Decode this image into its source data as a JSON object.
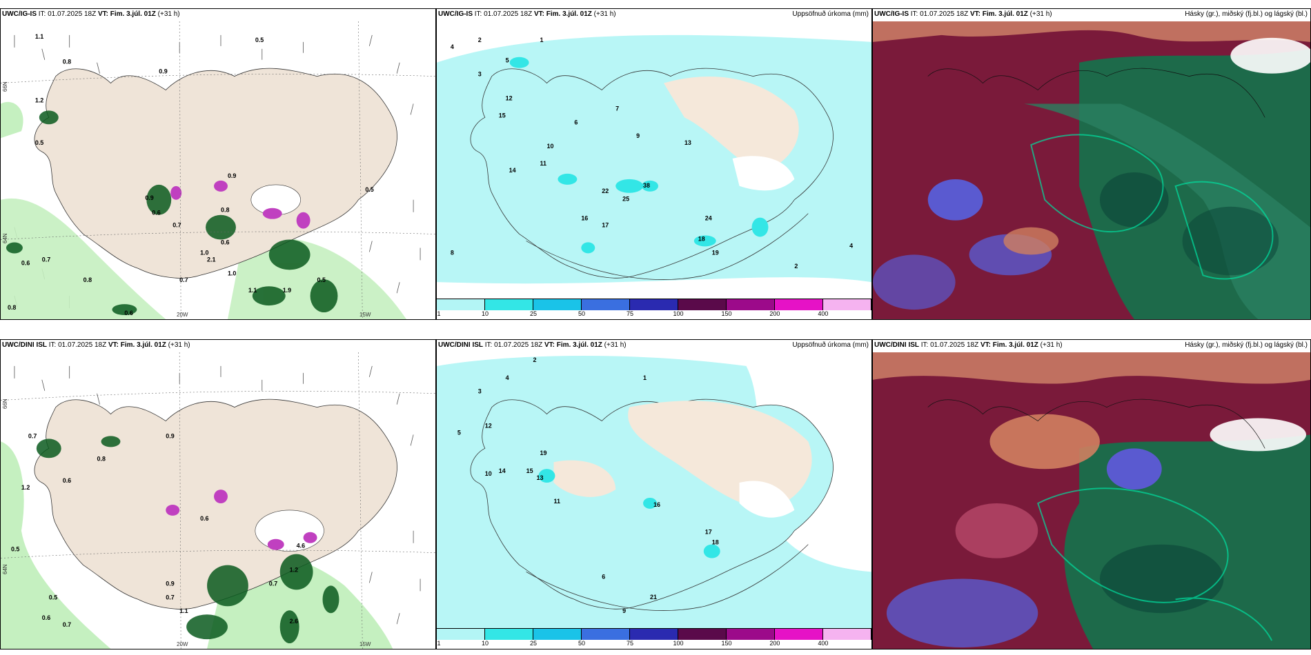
{
  "top_row": {
    "model": "UWC/IG-IS",
    "init_label": "IT:",
    "init_time": "01.07.2025 18Z",
    "valid_label": "VT:",
    "valid_time": "Fim. 3.júl. 01Z",
    "lead": "(+31 h)"
  },
  "bottom_row": {
    "model": "UWC/DINI ISL",
    "init_label": "IT:",
    "init_time": "01.07.2025 18Z",
    "valid_label": "VT:",
    "valid_time": "Fim. 3.júl. 01Z",
    "lead": "(+31 h)"
  },
  "precip_title": "Uppsöfnuð úrkoma (mm)",
  "cloud_title": "Hásky (gr.), miðský (fj.bl.) og lágský (bl.)",
  "lon_labels": [
    "20W",
    "15W"
  ],
  "lat_labels": [
    "66N",
    "64N"
  ],
  "colorbar": {
    "labels": [
      "1",
      "10",
      "25",
      "50",
      "75",
      "100",
      "150",
      "200",
      "400"
    ],
    "colors": [
      "#b3f5f5",
      "#33e6e6",
      "#1ac3e8",
      "#3a6fe0",
      "#2a2ab0",
      "#5a0a4a",
      "#9c0a8a",
      "#e612c6",
      "#f5b3f0"
    ]
  },
  "colors": {
    "land": "#efe4d8",
    "wind_green_light": "#c5f0c0",
    "wind_green_dark": "#0b5a1e",
    "precip_cyan": "#b8f6f6",
    "cloud_maroon": "#7a1a3a",
    "cloud_green": "#1d6a4a",
    "cloud_blue": "#5a5ad0"
  },
  "top_left_values": [
    "1.1",
    "0.5",
    "0.8",
    "0.9",
    "1.2",
    "0.5",
    "0.9",
    "0.7",
    "0.6",
    "0.9",
    "1.0",
    "2.1",
    "0.7",
    "1.1",
    "1.0",
    "0.6",
    "0.8",
    "0.6",
    "0.7",
    "1.9",
    "0.5",
    "0.8",
    "0.8",
    "0.6",
    "0.5"
  ],
  "top_mid_values": [
    "4",
    "2",
    "1",
    "5",
    "3",
    "12",
    "15",
    "14",
    "10",
    "6",
    "11",
    "7",
    "9",
    "13",
    "18",
    "16",
    "17",
    "19",
    "22",
    "38",
    "25",
    "24",
    "8",
    "2",
    "4"
  ],
  "bottom_left_values": [
    "0.7",
    "0.9",
    "1.2",
    "0.6",
    "0.8",
    "0.5",
    "0.9",
    "0.6",
    "0.7",
    "1.2",
    "4.6",
    "2.6",
    "1.1",
    "0.7",
    "0.5",
    "0.6",
    "0.7"
  ],
  "bottom_mid_values": [
    "2",
    "4",
    "3",
    "1",
    "5",
    "10",
    "12",
    "14",
    "15",
    "13",
    "19",
    "11",
    "16",
    "17",
    "18",
    "21",
    "9",
    "6"
  ]
}
